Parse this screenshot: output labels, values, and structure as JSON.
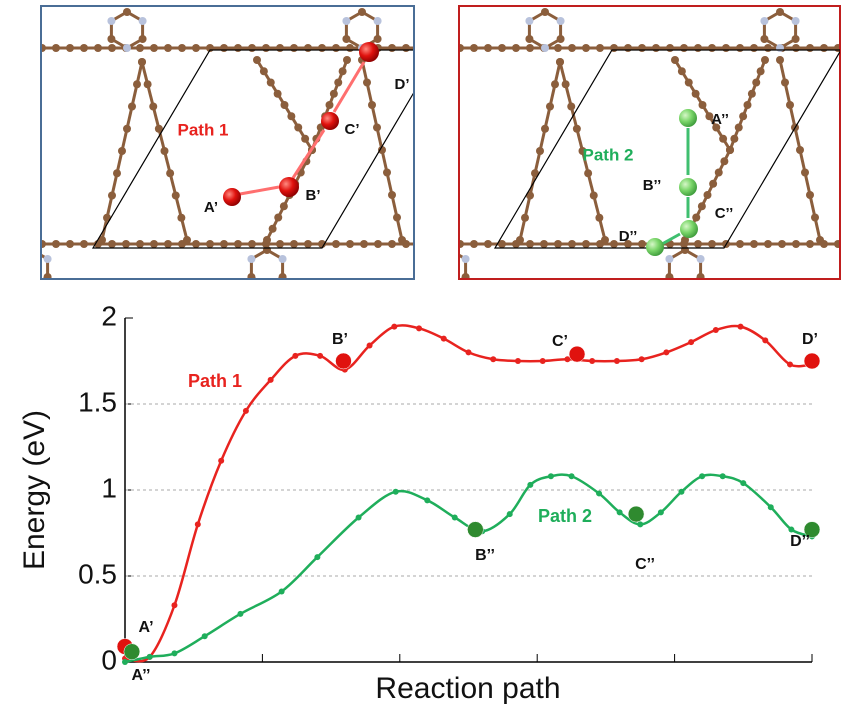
{
  "structure_panels": [
    {
      "path_label": "Path 1",
      "sites": [
        "A’",
        "B’",
        "C’",
        "D’"
      ]
    },
    {
      "path_label": "Path 2",
      "sites": [
        "A’’",
        "B’’",
        "C’’",
        "D’’"
      ]
    }
  ],
  "chart_data": {
    "type": "line",
    "x_label": "Reaction path",
    "y_label": "Energy (eV)",
    "xlim": [
      0,
      5
    ],
    "xticks": [
      0,
      1,
      2,
      3,
      4,
      5
    ],
    "ylim": [
      0,
      2
    ],
    "yticks": [
      0,
      0.5,
      1,
      1.5,
      2
    ],
    "grid": true,
    "series": [
      {
        "name": "Path 1",
        "color": "#e8231f",
        "state_color": "#e0120e",
        "x": [
          0,
          0.18,
          0.36,
          0.53,
          0.7,
          0.88,
          1.06,
          1.24,
          1.42,
          1.6,
          1.78,
          1.96,
          2.14,
          2.32,
          2.5,
          2.68,
          2.86,
          3.04,
          3.22,
          3.4,
          3.58,
          3.76,
          3.94,
          4.12,
          4.3,
          4.48,
          4.66,
          4.84,
          5
        ],
        "values": [
          0.02,
          0.03,
          0.33,
          0.8,
          1.17,
          1.46,
          1.64,
          1.78,
          1.78,
          1.7,
          1.84,
          1.95,
          1.94,
          1.88,
          1.8,
          1.76,
          1.75,
          1.75,
          1.76,
          1.75,
          1.75,
          1.76,
          1.8,
          1.86,
          1.93,
          1.95,
          1.87,
          1.73,
          1.73
        ],
        "states": [
          {
            "name": "A’",
            "x": 0,
            "y": 0.09
          },
          {
            "name": "B’",
            "x": 1.59,
            "y": 1.75
          },
          {
            "name": "C’",
            "x": 3.29,
            "y": 1.79
          },
          {
            "name": "D’",
            "x": 5,
            "y": 1.75
          }
        ]
      },
      {
        "name": "Path 2",
        "color": "#1fae5b",
        "state_color": "#2f8a2f",
        "x": [
          0,
          0.18,
          0.36,
          0.58,
          0.84,
          1.14,
          1.4,
          1.7,
          1.97,
          2.2,
          2.4,
          2.6,
          2.8,
          2.95,
          3.1,
          3.25,
          3.45,
          3.6,
          3.75,
          3.9,
          4.05,
          4.2,
          4.35,
          4.5,
          4.7,
          4.85,
          5
        ],
        "values": [
          0,
          0.03,
          0.05,
          0.15,
          0.28,
          0.41,
          0.61,
          0.84,
          0.99,
          0.94,
          0.84,
          0.76,
          0.86,
          1.03,
          1.08,
          1.08,
          0.98,
          0.87,
          0.8,
          0.87,
          0.99,
          1.08,
          1.08,
          1.04,
          0.9,
          0.77,
          0.73
        ],
        "states": [
          {
            "name": "A’’",
            "x": 0.05,
            "y": 0.06
          },
          {
            "name": "B’’",
            "x": 2.55,
            "y": 0.77
          },
          {
            "name": "C’’",
            "x": 3.72,
            "y": 0.86
          },
          {
            "name": "D’’",
            "x": 5,
            "y": 0.77
          }
        ]
      }
    ]
  }
}
